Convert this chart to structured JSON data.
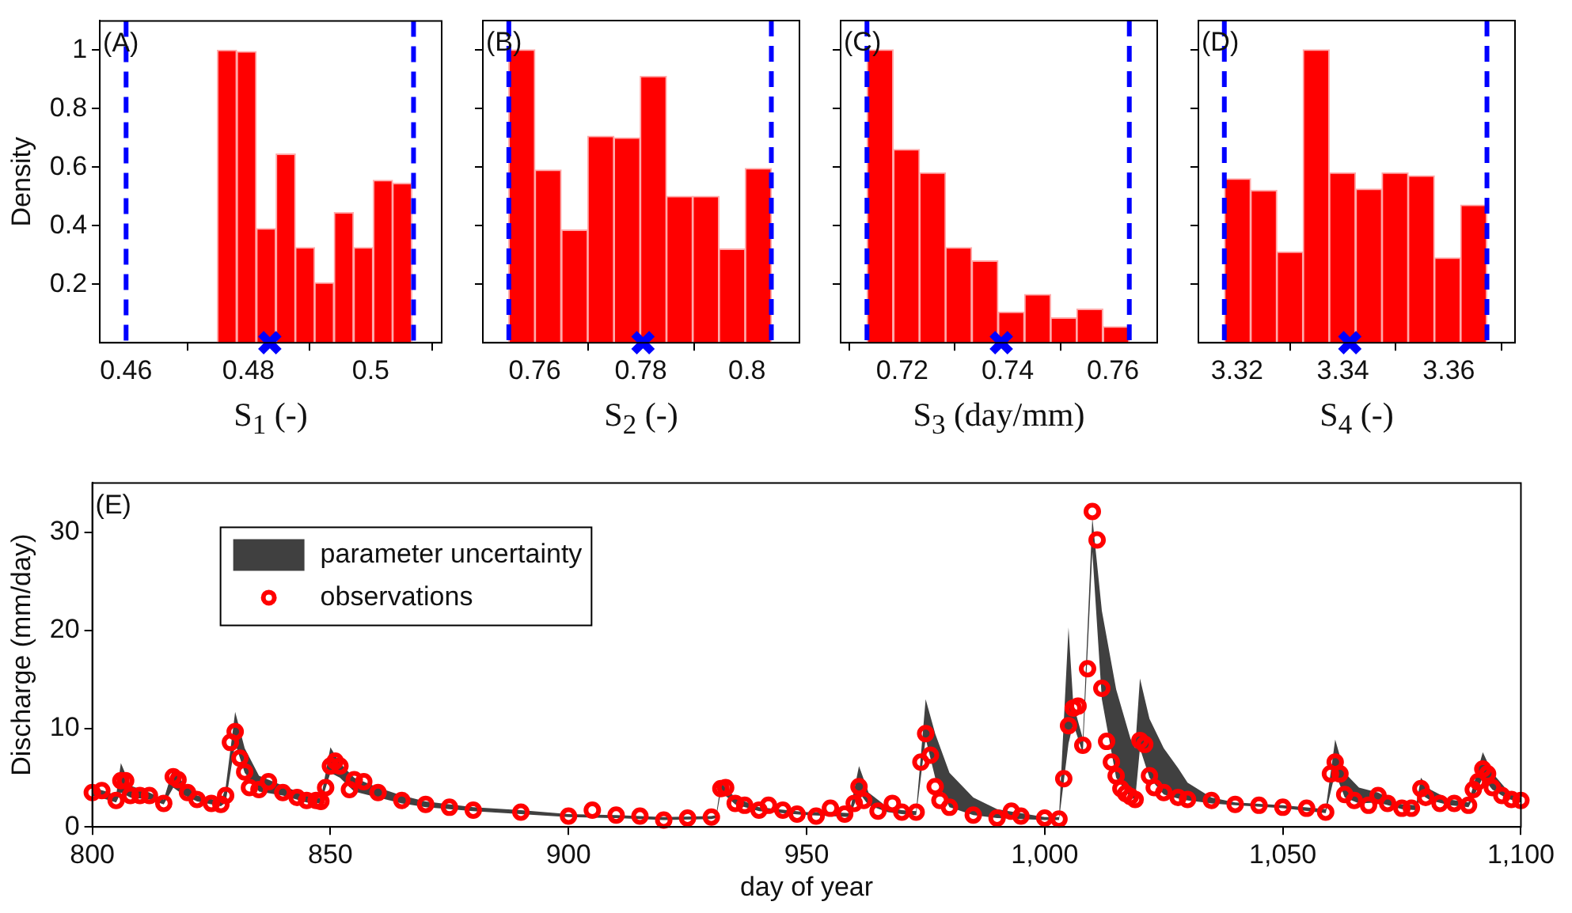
{
  "chart_data": [
    {
      "type": "histogram",
      "bins": [
        0.4749,
        0.4781,
        0.4813,
        0.4845,
        0.4877,
        0.4908,
        0.494,
        0.4972,
        0.5004,
        0.5036,
        0.5067
      ],
      "values": [
        1.0,
        0.995,
        0.39,
        0.645,
        0.325,
        0.205,
        0.445,
        0.325,
        0.555,
        0.545
      ],
      "color": "#ff0000",
      "series": [
        {
          "type": "scatter",
          "x": [
            0.4835
          ],
          "values": [
            0
          ],
          "color": "#0000ff",
          "marker": "cross"
        }
      ],
      "ref_lines": [
        {
          "axis": "x",
          "value": 0.46,
          "color": "#0000ff",
          "line_style": "dashed"
        },
        {
          "axis": "x",
          "value": 0.507,
          "color": "#0000ff",
          "line_style": "dashed"
        }
      ],
      "xlim": [
        0.4557,
        0.5116
      ],
      "xticks": [
        0.46,
        0.48,
        0.5
      ],
      "ylim": [
        0,
        1.1
      ],
      "yticks": [
        0.2,
        0.4,
        0.6,
        0.8,
        1
      ],
      "ylabel": "Density",
      "xlabel": "S$_{1}$ (-)",
      "annotations": [
        "(A)"
      ]
    },
    {
      "type": "histogram",
      "bins": [
        0.7551,
        0.76,
        0.765,
        0.77,
        0.7749,
        0.7799,
        0.7848,
        0.7898,
        0.7947,
        0.7997,
        0.8046
      ],
      "values": [
        1.0,
        0.59,
        0.385,
        0.705,
        0.7,
        0.91,
        0.5,
        0.5,
        0.32,
        0.595
      ],
      "color": "#ff0000",
      "series": [
        {
          "type": "scatter",
          "x": [
            0.7804
          ],
          "values": [
            0
          ],
          "color": "#0000ff",
          "marker": "cross"
        }
      ],
      "ref_lines": [
        {
          "axis": "x",
          "value": 0.7551,
          "color": "#0000ff",
          "line_style": "dashed"
        },
        {
          "axis": "x",
          "value": 0.8046,
          "color": "#0000ff",
          "line_style": "dashed"
        }
      ],
      "xlim": [
        0.7502,
        0.8099
      ],
      "xticks": [
        0.76,
        0.78,
        0.8
      ],
      "ylim": [
        0,
        1.1
      ],
      "yticks": [
        0.2,
        0.4,
        0.6,
        0.8,
        1
      ],
      "tick_labels": "x",
      "xlabel": "S$_{2}$ (-)",
      "annotations": [
        "(B)"
      ]
    },
    {
      "type": "histogram",
      "bins": [
        0.7133,
        0.7183,
        0.7233,
        0.7282,
        0.7332,
        0.7382,
        0.7432,
        0.7482,
        0.7531,
        0.7581,
        0.7631
      ],
      "values": [
        1.0,
        0.66,
        0.58,
        0.325,
        0.28,
        0.105,
        0.165,
        0.085,
        0.115,
        0.055
      ],
      "color": "#ff0000",
      "series": [
        {
          "type": "scatter",
          "x": [
            0.7388
          ],
          "values": [
            0
          ],
          "color": "#0000ff",
          "marker": "cross"
        }
      ],
      "ref_lines": [
        {
          "axis": "x",
          "value": 0.7133,
          "color": "#0000ff",
          "line_style": "dashed"
        },
        {
          "axis": "x",
          "value": 0.7631,
          "color": "#0000ff",
          "line_style": "dashed"
        }
      ],
      "xlim": [
        0.7083,
        0.7684
      ],
      "xticks": [
        0.72,
        0.74,
        0.76
      ],
      "ylim": [
        0,
        1.1
      ],
      "yticks": [
        0.2,
        0.4,
        0.6,
        0.8,
        1
      ],
      "tick_labels": "x",
      "xlabel": "S$_{3}$ (day/mm)",
      "annotations": [
        "(C)"
      ]
    },
    {
      "type": "histogram",
      "bins": [
        3.3176,
        3.3226,
        3.3275,
        3.3325,
        3.3374,
        3.3424,
        3.3474,
        3.3523,
        3.3573,
        3.3622,
        3.3672
      ],
      "values": [
        0.56,
        0.52,
        0.31,
        1.0,
        0.58,
        0.525,
        0.58,
        0.57,
        0.29,
        0.47
      ],
      "color": "#ff0000",
      "series": [
        {
          "type": "scatter",
          "x": [
            3.3413
          ],
          "values": [
            0
          ],
          "color": "#0000ff",
          "marker": "cross"
        }
      ],
      "ref_lines": [
        {
          "axis": "x",
          "value": 3.3176,
          "color": "#0000ff",
          "line_style": "dashed"
        },
        {
          "axis": "x",
          "value": 3.3672,
          "color": "#0000ff",
          "line_style": "dashed"
        }
      ],
      "xlim": [
        3.3127,
        3.3725
      ],
      "xticks": [
        3.32,
        3.34,
        3.36
      ],
      "ylim": [
        0,
        1.1
      ],
      "yticks": [
        0.2,
        0.4,
        0.6,
        0.8,
        1
      ],
      "tick_labels": "x",
      "xlabel": "S$_{4}$ (-)",
      "annotations": [
        "(D)"
      ]
    },
    {
      "type": "scatter",
      "xlabel": "day of year",
      "ylabel": "Discharge (mm/day)",
      "annotations": [
        "(E)"
      ],
      "legend": "top left",
      "xlim": [
        800,
        1100
      ],
      "xticks": [
        800,
        850,
        900,
        950,
        {
          "value": 1000,
          "label": "1,000"
        },
        {
          "value": 1050,
          "label": "1,050"
        },
        {
          "value": 1100,
          "label": "1,100"
        }
      ],
      "ylim": [
        0,
        35
      ],
      "yticks": [
        0,
        10,
        20,
        30
      ],
      "series": [
        {
          "type": "area",
          "name": "parameter uncertainty",
          "color": "#404040",
          "values": [
            null,
            null,
            null,
            null,
            null,
            null,
            null,
            null,
            null,
            null,
            null,
            null,
            null,
            null,
            null,
            null,
            null,
            null,
            null,
            null,
            null,
            null,
            null,
            null,
            null,
            null,
            null,
            null,
            null,
            null,
            null,
            null,
            null,
            null,
            null,
            null,
            null,
            null,
            null,
            null,
            null,
            null,
            null,
            null,
            null,
            null,
            null,
            null,
            null,
            null,
            null,
            null,
            null,
            null,
            null,
            null,
            null,
            null,
            null,
            null,
            null,
            null,
            null,
            null,
            null,
            null,
            null,
            null,
            null,
            null,
            null,
            null,
            null,
            null,
            null,
            null,
            null,
            null,
            null,
            null
          ],
          "x": [
            800,
            803,
            805,
            806,
            808,
            812,
            815,
            817,
            819,
            822,
            827,
            828,
            830,
            832,
            835,
            840,
            845,
            848,
            850,
            852,
            855,
            860,
            865,
            870,
            880,
            890,
            900,
            910,
            920,
            930,
            931,
            932,
            935,
            940,
            950,
            955,
            959,
            961,
            963,
            967,
            970,
            973,
            975,
            977,
            980,
            985,
            990,
            1000,
            1003,
            1005,
            1006,
            1008,
            1010,
            1012,
            1015,
            1018,
            1019,
            1020,
            1022,
            1025,
            1028,
            1030,
            1035,
            1040,
            1050,
            1059,
            1061,
            1063,
            1066,
            1070,
            1075,
            1078,
            1079,
            1081,
            1085,
            1089,
            1092,
            1094,
            1097,
            1100
          ],
          "lower": [
            3.2,
            2.8,
            2.5,
            3.5,
            3.0,
            2.8,
            2.3,
            4.0,
            3.3,
            2.6,
            2.1,
            2.5,
            8.5,
            5.5,
            3.6,
            3.2,
            2.5,
            2.4,
            5.5,
            5.0,
            3.6,
            3.0,
            2.4,
            2.0,
            1.6,
            1.3,
            1.0,
            0.9,
            0.7,
            0.8,
            0.9,
            3.6,
            2.3,
            1.6,
            1.2,
            1.1,
            1.0,
            3.5,
            2.2,
            1.5,
            1.3,
            1.2,
            9.0,
            5.0,
            2.0,
            1.2,
            0.9,
            0.7,
            0.7,
            8.5,
            10.5,
            7.5,
            28.0,
            13.0,
            5.0,
            3.0,
            2.8,
            8.0,
            5.0,
            3.3,
            2.9,
            2.7,
            2.4,
            2.2,
            1.9,
            1.4,
            5.5,
            3.0,
            2.4,
            2.5,
            1.8,
            1.7,
            3.3,
            2.7,
            2.2,
            2.0,
            5.0,
            3.8,
            2.9,
            2.5
          ],
          "upper": [
            4.0,
            3.6,
            3.2,
            6.5,
            4.2,
            3.5,
            2.8,
            6.0,
            4.5,
            3.2,
            2.6,
            4.0,
            11.7,
            8.0,
            5.2,
            4.2,
            3.2,
            2.9,
            8.1,
            6.5,
            5.0,
            4.0,
            3.2,
            2.6,
            2.0,
            1.7,
            1.3,
            1.2,
            1.0,
            1.1,
            1.2,
            4.5,
            3.0,
            2.0,
            1.5,
            1.5,
            1.4,
            6.2,
            3.5,
            2.0,
            1.7,
            1.6,
            13.0,
            9.5,
            5.5,
            3.0,
            1.8,
            1.0,
            1.0,
            20.3,
            12.5,
            9.0,
            31.5,
            22.0,
            14.0,
            9.0,
            8.0,
            15.1,
            11.0,
            8.0,
            6.0,
            4.5,
            3.0,
            2.5,
            2.2,
            1.8,
            8.9,
            5.5,
            4.0,
            3.5,
            2.3,
            2.2,
            5.0,
            3.8,
            2.8,
            2.5,
            7.6,
            5.5,
            3.8,
            3.0
          ]
        },
        {
          "type": "scatter",
          "name": "observations",
          "color": "#ff0000",
          "marker": "circle",
          "x": [
            800,
            802,
            805,
            806,
            807,
            808,
            810,
            812,
            815,
            817,
            818,
            820,
            822,
            825,
            827,
            828,
            829,
            830,
            831,
            832,
            833,
            835,
            837,
            840,
            843,
            845,
            847,
            848,
            849,
            850,
            851,
            852,
            854,
            855,
            857,
            860,
            865,
            870,
            875,
            880,
            890,
            900,
            905,
            910,
            915,
            920,
            925,
            930,
            932,
            933,
            935,
            937,
            940,
            942,
            945,
            948,
            952,
            955,
            958,
            960,
            961,
            962,
            965,
            968,
            970,
            973,
            974,
            975,
            976,
            977,
            978,
            980,
            985,
            990,
            993,
            995,
            1000,
            1003,
            1004,
            1005,
            1006,
            1007,
            1008,
            1009,
            1010,
            1011,
            1012,
            1013,
            1014,
            1015,
            1016,
            1017,
            1018,
            1019,
            1020,
            1021,
            1022,
            1023,
            1025,
            1028,
            1030,
            1035,
            1040,
            1045,
            1050,
            1055,
            1059,
            1060,
            1061,
            1062,
            1063,
            1065,
            1068,
            1070,
            1072,
            1075,
            1077,
            1079,
            1080,
            1083,
            1086,
            1089,
            1090,
            1091,
            1092,
            1093,
            1094,
            1096,
            1098,
            1100
          ],
          "values": [
            3.5,
            3.7,
            2.7,
            4.7,
            4.7,
            3.2,
            3.2,
            3.2,
            2.4,
            5.1,
            4.8,
            3.5,
            2.8,
            2.4,
            2.3,
            3.2,
            8.6,
            9.7,
            7.0,
            5.6,
            4.0,
            3.8,
            4.6,
            3.5,
            3.0,
            2.7,
            2.7,
            2.6,
            4.0,
            6.2,
            6.7,
            6.2,
            3.8,
            4.8,
            4.6,
            3.5,
            2.7,
            2.3,
            2.0,
            1.7,
            1.5,
            1.1,
            1.7,
            1.2,
            1.1,
            0.7,
            0.9,
            1.0,
            3.9,
            4.0,
            2.4,
            2.2,
            1.7,
            2.2,
            1.7,
            1.3,
            1.1,
            1.9,
            1.3,
            2.4,
            4.1,
            2.7,
            1.6,
            2.4,
            1.5,
            1.5,
            6.6,
            9.5,
            7.3,
            4.1,
            2.7,
            2.0,
            1.2,
            0.9,
            1.6,
            1.1,
            0.9,
            0.8,
            4.9,
            10.3,
            12.1,
            12.3,
            8.3,
            16.1,
            32.1,
            29.2,
            14.1,
            8.7,
            6.6,
            5.2,
            3.9,
            3.4,
            3.1,
            2.8,
            8.8,
            8.4,
            5.2,
            4.0,
            3.5,
            3.0,
            2.8,
            2.7,
            2.3,
            2.2,
            2.0,
            1.9,
            1.5,
            5.4,
            6.6,
            5.4,
            3.3,
            2.7,
            2.2,
            3.2,
            2.4,
            1.9,
            1.9,
            3.9,
            3.0,
            2.4,
            2.4,
            2.2,
            3.8,
            4.6,
            5.9,
            5.4,
            4.0,
            3.2,
            2.8,
            2.7
          ]
        }
      ]
    }
  ]
}
